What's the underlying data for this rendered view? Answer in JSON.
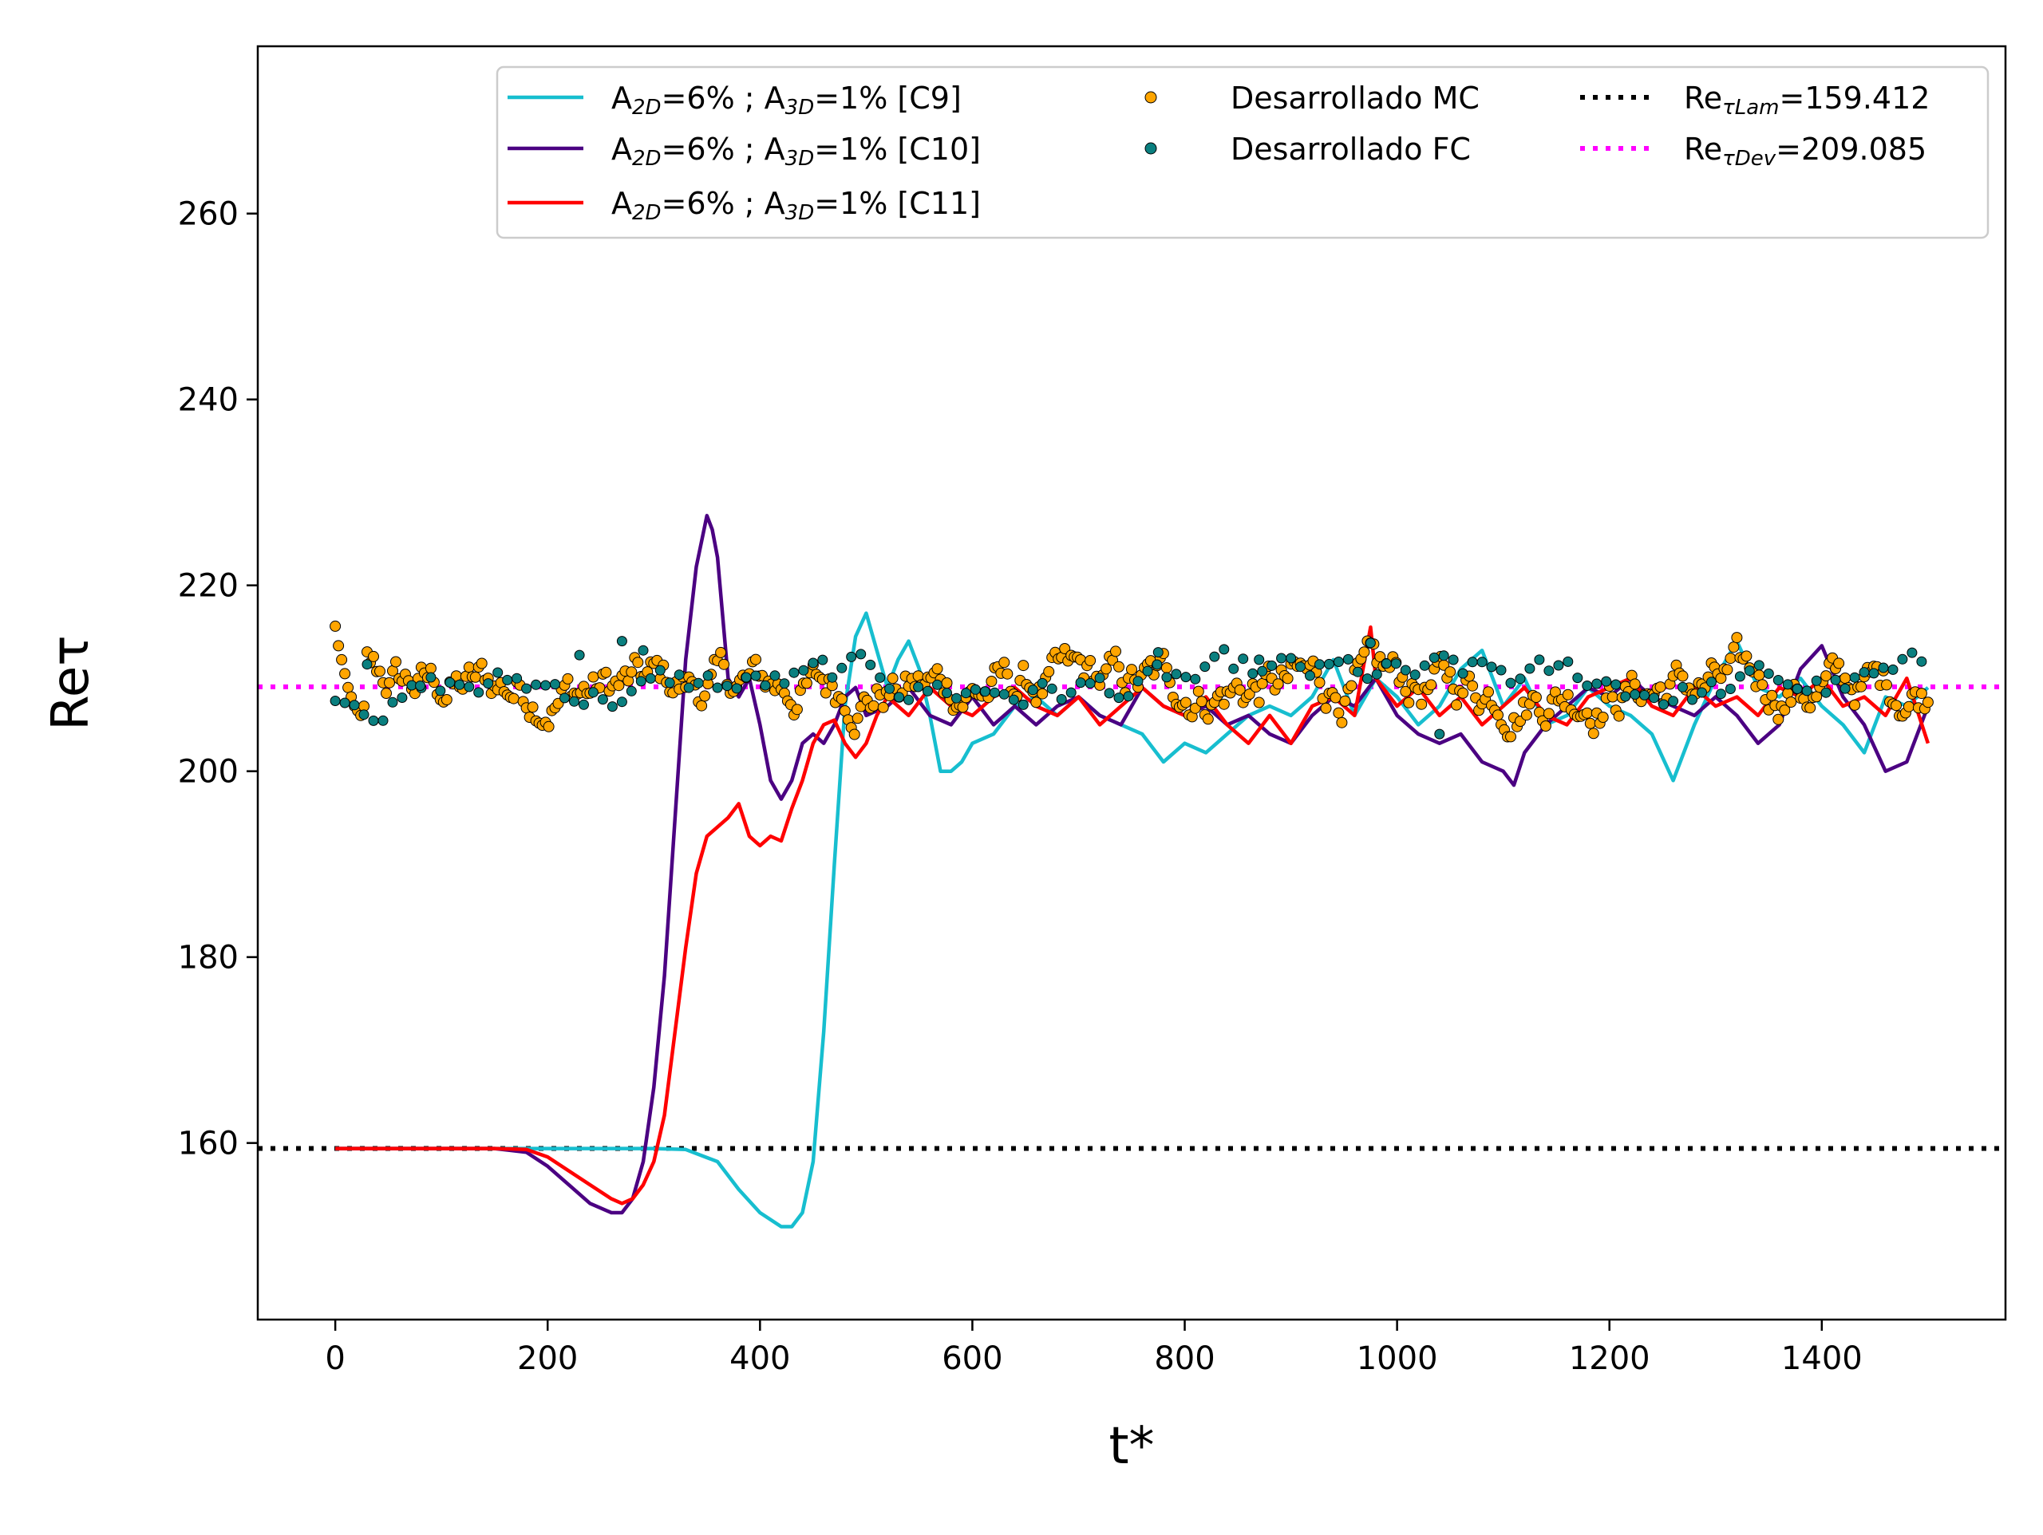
{
  "chart_data": {
    "type": "line",
    "title": "",
    "xlabel": "t*",
    "ylabel": "Reτ",
    "xlim": [
      -73,
      1573
    ],
    "ylim": [
      141,
      278
    ],
    "xticks": [
      0,
      200,
      400,
      600,
      800,
      1000,
      1200,
      1400
    ],
    "yticks": [
      160,
      180,
      200,
      220,
      240,
      260
    ],
    "grid": false,
    "legend_position": "top-right",
    "legend_columns": 3,
    "series": [
      {
        "name": "A2D=6% ; A3D=1% [C9]",
        "label": {
          "a": "A",
          "s1": "2D",
          "mid": "=6% ; A",
          "s2": "3D",
          "end": "=1% [C9]"
        },
        "kind": "line",
        "color": "#17becf",
        "x": [
          0,
          50,
          100,
          150,
          200,
          250,
          300,
          330,
          360,
          380,
          400,
          420,
          430,
          440,
          450,
          460,
          470,
          480,
          490,
          500,
          510,
          520,
          530,
          540,
          550,
          560,
          570,
          580,
          590,
          600,
          620,
          640,
          660,
          680,
          700,
          720,
          740,
          760,
          780,
          800,
          820,
          840,
          860,
          880,
          900,
          920,
          940,
          960,
          980,
          1000,
          1020,
          1040,
          1060,
          1080,
          1100,
          1120,
          1140,
          1160,
          1180,
          1200,
          1220,
          1240,
          1260,
          1280,
          1300,
          1320,
          1340,
          1360,
          1380,
          1400,
          1420,
          1440,
          1460,
          1480,
          1500
        ],
        "y": [
          159.4,
          159.4,
          159.4,
          159.4,
          159.4,
          159.4,
          159.4,
          159.3,
          158.0,
          155.0,
          152.5,
          151.0,
          151.0,
          152.5,
          158.0,
          172.0,
          190.0,
          207.0,
          214.5,
          217.0,
          213.0,
          209.0,
          212.0,
          214.0,
          211.0,
          206.0,
          200.0,
          200.0,
          201.0,
          203.0,
          204.0,
          207.0,
          208.0,
          206.0,
          208.0,
          206.0,
          205.0,
          204.0,
          201.0,
          203.0,
          202.0,
          204.0,
          206.0,
          207.0,
          206.0,
          208.0,
          212.0,
          206.0,
          210.0,
          208.0,
          205.0,
          207.0,
          211.0,
          213.0,
          207.0,
          210.0,
          205.0,
          206.0,
          209.0,
          207.0,
          206.0,
          204.0,
          199.0,
          205.0,
          210.0,
          214.0,
          209.0,
          208.0,
          210.0,
          207.0,
          205.0,
          202.0,
          208.0,
          207.0,
          209.0
        ]
      },
      {
        "name": "A2D=6% ; A3D=1% [C10]",
        "label": {
          "a": "A",
          "s1": "2D",
          "mid": "=6% ; A",
          "s2": "3D",
          "end": "=1% [C10]"
        },
        "kind": "line",
        "color": "#4b0082",
        "x": [
          0,
          50,
          100,
          150,
          180,
          200,
          220,
          240,
          260,
          270,
          280,
          290,
          300,
          310,
          320,
          330,
          340,
          350,
          355,
          360,
          370,
          380,
          390,
          400,
          410,
          420,
          430,
          440,
          450,
          460,
          470,
          480,
          490,
          500,
          520,
          540,
          560,
          580,
          600,
          620,
          640,
          660,
          680,
          700,
          720,
          740,
          760,
          780,
          800,
          820,
          840,
          860,
          880,
          900,
          920,
          940,
          960,
          980,
          1000,
          1020,
          1040,
          1060,
          1080,
          1100,
          1110,
          1120,
          1140,
          1160,
          1180,
          1200,
          1220,
          1240,
          1260,
          1280,
          1300,
          1320,
          1340,
          1360,
          1380,
          1400,
          1420,
          1440,
          1460,
          1480,
          1500
        ],
        "y": [
          159.4,
          159.4,
          159.4,
          159.4,
          159.0,
          157.5,
          155.5,
          153.5,
          152.5,
          152.5,
          154.0,
          158.0,
          166.0,
          178.0,
          195.0,
          212.0,
          222.0,
          227.5,
          226.0,
          223.0,
          210.0,
          208.0,
          210.0,
          205.0,
          199.0,
          197.0,
          199.0,
          203.0,
          204.0,
          203.0,
          205.0,
          208.0,
          209.0,
          206.0,
          207.0,
          209.0,
          206.0,
          205.0,
          208.0,
          205.0,
          207.0,
          205.0,
          207.0,
          208.0,
          206.0,
          205.0,
          209.0,
          207.0,
          206.0,
          207.0,
          205.0,
          206.0,
          204.0,
          203.0,
          206.0,
          208.0,
          207.0,
          210.0,
          206.0,
          204.0,
          203.0,
          204.0,
          201.0,
          200.0,
          198.5,
          202.0,
          205.0,
          207.0,
          209.0,
          208.0,
          210.0,
          208.0,
          207.0,
          206.0,
          208.0,
          206.0,
          203.0,
          205.0,
          211.0,
          213.5,
          208.0,
          205.0,
          200.0,
          201.0,
          207.0
        ]
      },
      {
        "name": "A2D=6% ; A3D=1% [C11]",
        "label": {
          "a": "A",
          "s1": "2D",
          "mid": "=6% ; A",
          "s2": "3D",
          "end": "=1% [C11]"
        },
        "kind": "line",
        "color": "#ff0000",
        "x": [
          0,
          50,
          100,
          150,
          180,
          200,
          220,
          240,
          260,
          270,
          280,
          290,
          300,
          310,
          320,
          330,
          340,
          350,
          360,
          370,
          380,
          390,
          400,
          410,
          420,
          430,
          440,
          450,
          460,
          470,
          480,
          490,
          500,
          510,
          520,
          540,
          560,
          580,
          600,
          620,
          640,
          660,
          680,
          700,
          720,
          740,
          760,
          780,
          800,
          820,
          840,
          860,
          880,
          900,
          920,
          940,
          960,
          975,
          980,
          1000,
          1020,
          1040,
          1060,
          1080,
          1100,
          1120,
          1140,
          1160,
          1180,
          1200,
          1220,
          1240,
          1260,
          1280,
          1300,
          1320,
          1340,
          1360,
          1380,
          1400,
          1420,
          1440,
          1460,
          1480,
          1500
        ],
        "y": [
          159.4,
          159.4,
          159.4,
          159.4,
          159.3,
          158.5,
          157.0,
          155.5,
          154.0,
          153.5,
          154.0,
          155.5,
          158.0,
          163.0,
          172.0,
          181.0,
          189.0,
          193.0,
          194.0,
          195.0,
          196.5,
          193.0,
          192.0,
          193.0,
          192.5,
          196.0,
          199.0,
          203.0,
          205.0,
          205.5,
          203.0,
          201.5,
          203.0,
          206.0,
          208.0,
          206.0,
          209.0,
          207.0,
          206.0,
          208.0,
          209.0,
          207.0,
          206.0,
          208.0,
          205.0,
          207.0,
          209.0,
          207.0,
          206.0,
          208.0,
          205.0,
          203.0,
          206.0,
          203.0,
          207.0,
          208.0,
          206.0,
          215.5,
          210.0,
          207.0,
          209.0,
          206.0,
          208.0,
          205.0,
          207.0,
          209.0,
          206.0,
          205.0,
          208.0,
          209.0,
          210.0,
          207.0,
          206.0,
          209.0,
          207.0,
          208.0,
          206.0,
          209.0,
          208.0,
          210.0,
          207.0,
          208.0,
          206.0,
          210.0,
          203.0
        ]
      },
      {
        "name": "Desarrollado MC",
        "kind": "scatter",
        "color": "#ffa500",
        "stroke": "#000000",
        "x_start": 0,
        "x_step": 3,
        "count": 501,
        "mean": 209.0,
        "amplitude": 3.0,
        "first_values": [
          215.6,
          213.5,
          212.0,
          210.5,
          209.0,
          208.0,
          207.0,
          206.5,
          206.0,
          207.0
        ]
      },
      {
        "name": "Desarrollado FC",
        "kind": "scatter",
        "color": "#0a7f7f",
        "stroke": "#000000",
        "x_start": 0,
        "x_step": 9,
        "count": 167,
        "mean": 209.0,
        "amplitude": 2.5,
        "outliers": [
          [
            30,
            211.5
          ],
          [
            80,
            209.2
          ],
          [
            230,
            212.5
          ],
          [
            270,
            214.0
          ],
          [
            290,
            213.0
          ],
          [
            775,
            212.8
          ],
          [
            870,
            212.0
          ],
          [
            975,
            213.8
          ],
          [
            1040,
            204.0
          ]
        ]
      },
      {
        "name": "Reτ Lam=159.412",
        "label": {
          "a": "Re",
          "s1": "τLam",
          "end": "=159.412"
        },
        "kind": "hline",
        "color": "#000000",
        "value": 159.412
      },
      {
        "name": "Reτ Dev=209.085",
        "label": {
          "a": "Re",
          "s1": "τDev",
          "end": "=209.085"
        },
        "kind": "hline",
        "color": "#ff00ff",
        "value": 209.085
      }
    ]
  }
}
